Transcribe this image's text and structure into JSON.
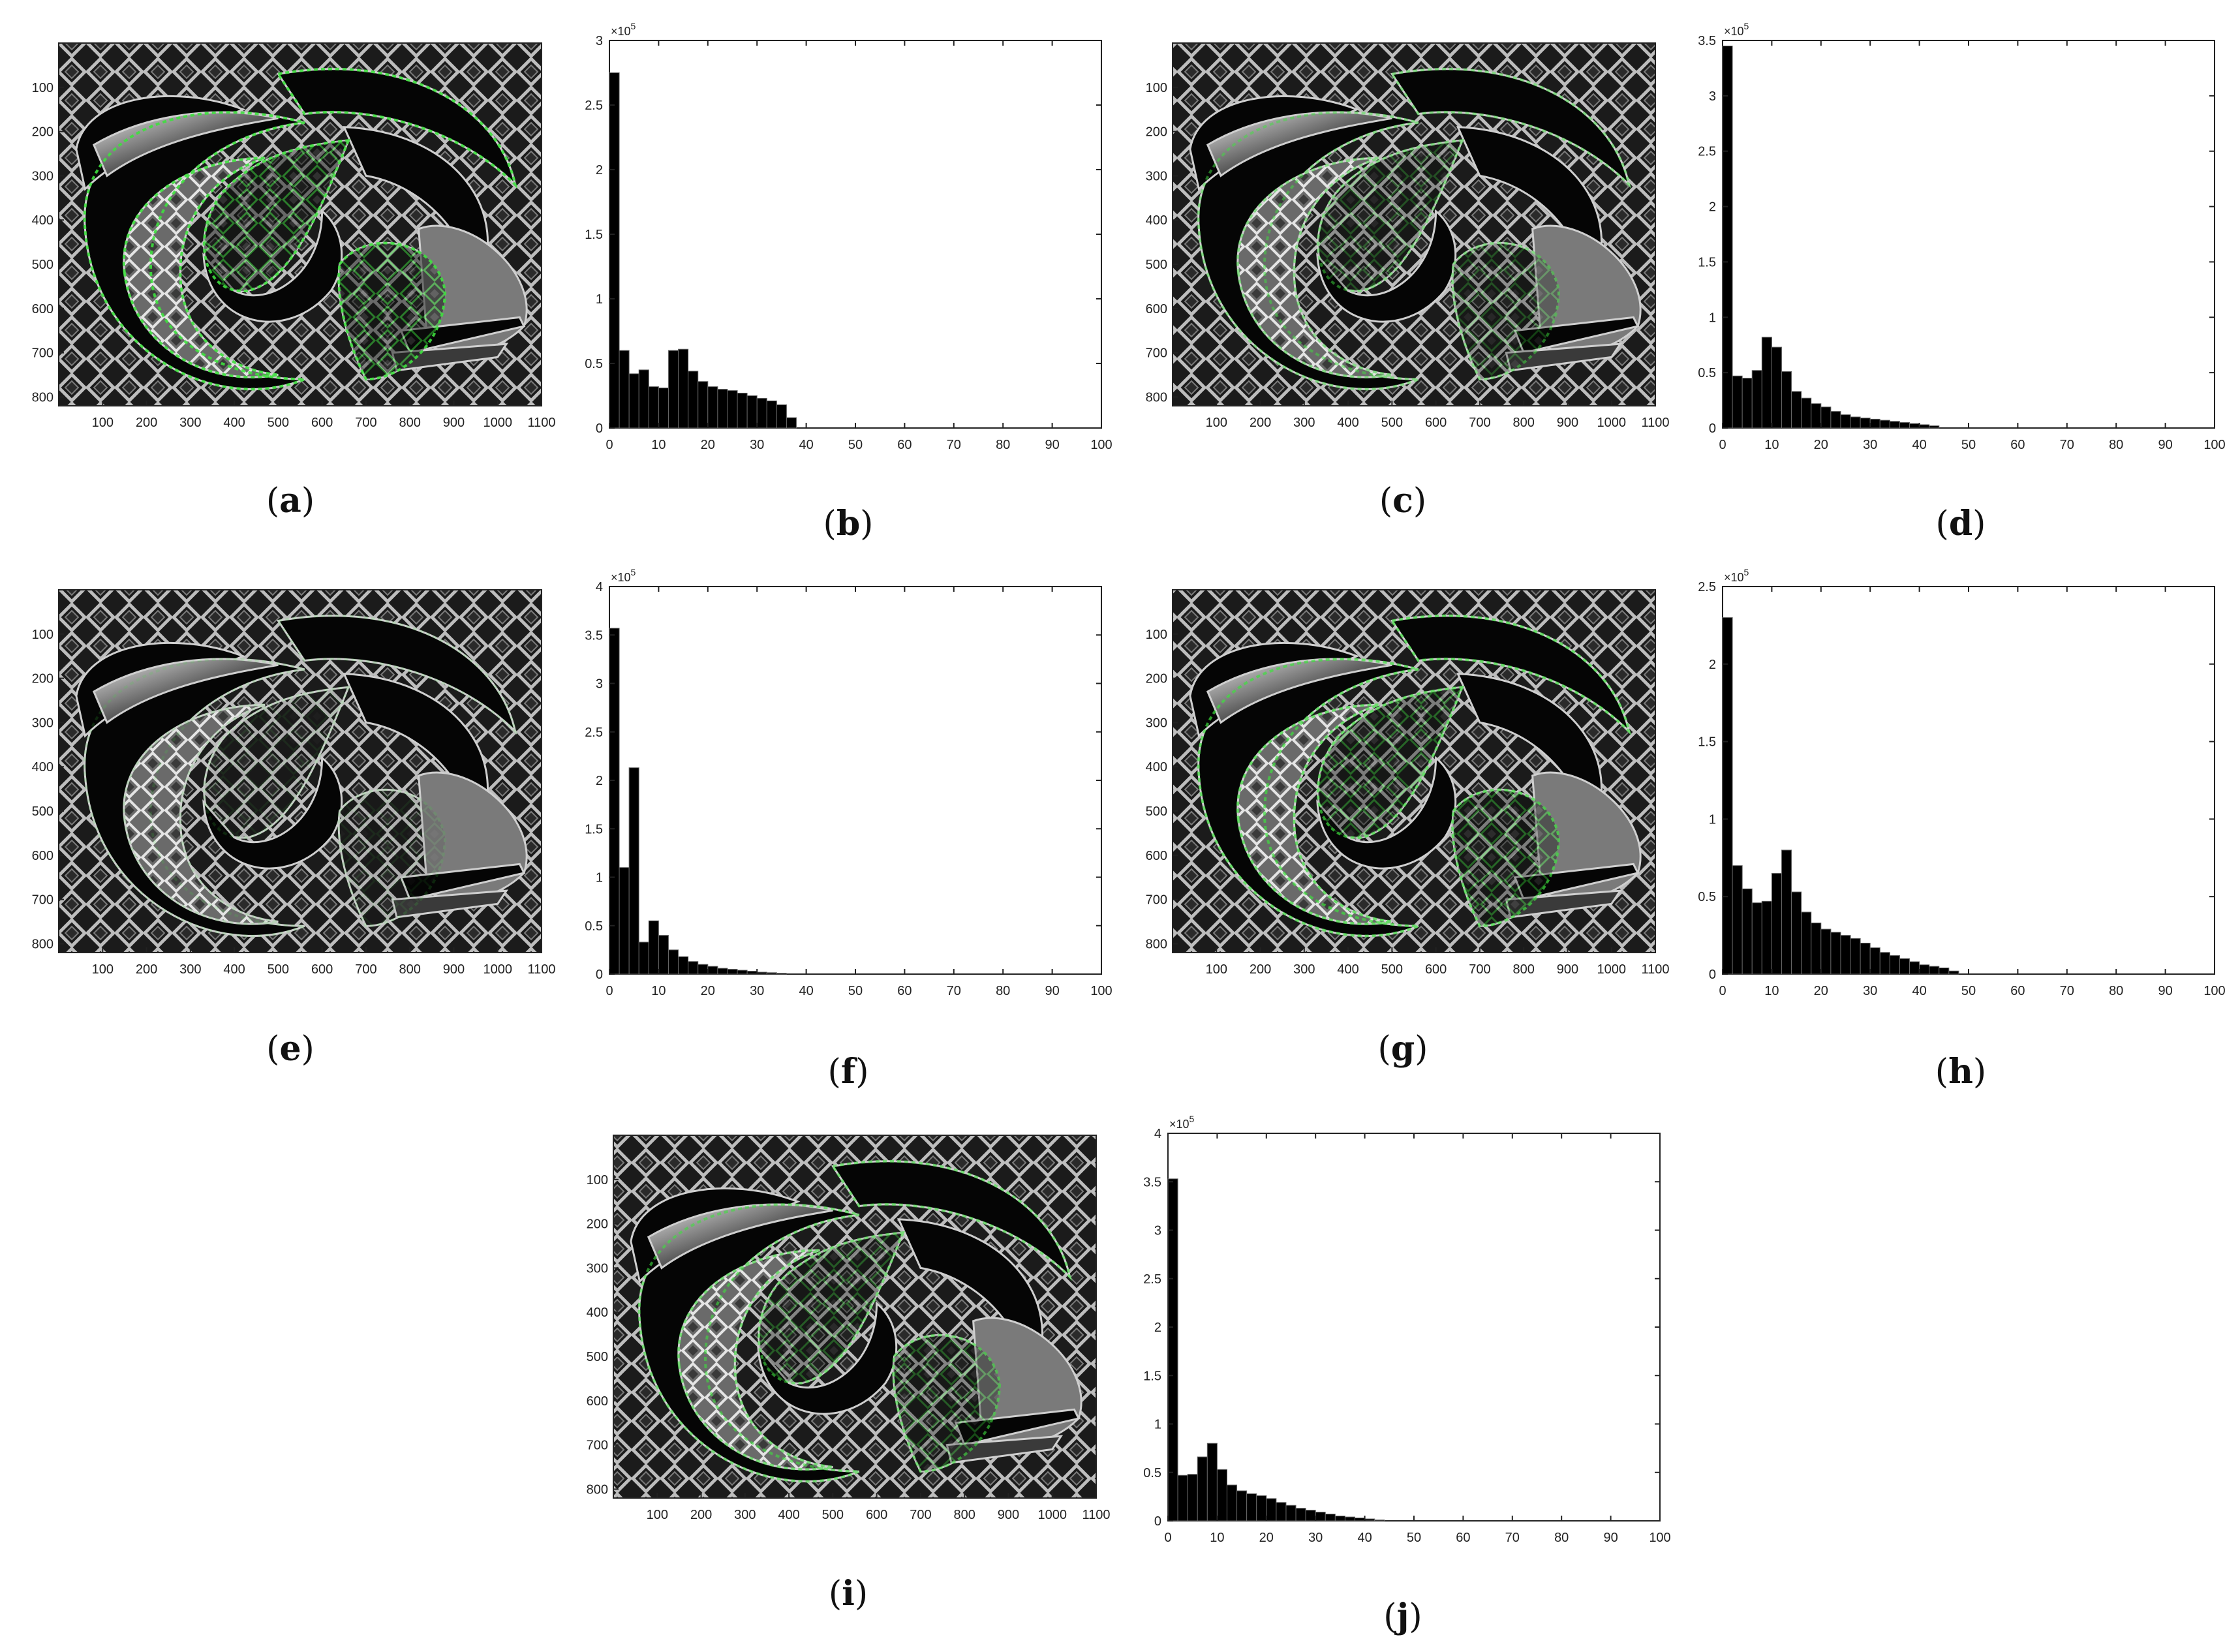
{
  "figure": {
    "panel_labels": [
      "(a)",
      "(b)",
      "(c)",
      "(d)",
      "(e)",
      "(f)",
      "(g)",
      "(h)",
      "(i)",
      "(j)"
    ]
  },
  "image_axes": {
    "x_ticks": [
      100,
      200,
      300,
      400,
      500,
      600,
      700,
      800,
      900,
      1000,
      1100
    ],
    "y_ticks": [
      100,
      200,
      300,
      400,
      500,
      600,
      700,
      800
    ],
    "x_range": [
      0,
      1100
    ],
    "y_range": [
      0,
      820
    ]
  },
  "colors": {
    "overlay_green": "#3ee03e",
    "bar_fill": "#000000",
    "background": "#ffffff"
  },
  "chart_data": [
    {
      "panel": "(b)",
      "type": "bar",
      "exponent": "5",
      "ylim": [
        0,
        3
      ],
      "yticks": [
        "0",
        "0.5",
        "1",
        "1.5",
        "2",
        "2.5",
        "3"
      ],
      "xlim": [
        0,
        100
      ],
      "xticks": [
        0,
        10,
        20,
        30,
        40,
        50,
        60,
        70,
        80,
        90,
        100
      ],
      "bin_start": 0,
      "bin_width": 2,
      "values": [
        2.75,
        0.6,
        0.42,
        0.45,
        0.32,
        0.31,
        0.6,
        0.61,
        0.44,
        0.36,
        0.32,
        0.3,
        0.29,
        0.27,
        0.25,
        0.23,
        0.21,
        0.18,
        0.08
      ]
    },
    {
      "panel": "(d)",
      "type": "bar",
      "exponent": "5",
      "ylim": [
        0,
        3.5
      ],
      "yticks": [
        "0",
        "0.5",
        "1",
        "1.5",
        "2",
        "2.5",
        "3",
        "3.5"
      ],
      "xlim": [
        0,
        100
      ],
      "xticks": [
        0,
        10,
        20,
        30,
        40,
        50,
        60,
        70,
        80,
        90,
        100
      ],
      "bin_start": 0,
      "bin_width": 2,
      "values": [
        3.45,
        0.47,
        0.45,
        0.52,
        0.82,
        0.73,
        0.51,
        0.33,
        0.27,
        0.22,
        0.19,
        0.15,
        0.12,
        0.1,
        0.09,
        0.08,
        0.07,
        0.06,
        0.05,
        0.04,
        0.03,
        0.02
      ]
    },
    {
      "panel": "(f)",
      "type": "bar",
      "exponent": "5",
      "ylim": [
        0,
        4
      ],
      "yticks": [
        "0",
        "0.5",
        "1",
        "1.5",
        "2",
        "2.5",
        "3",
        "3.5",
        "4"
      ],
      "xlim": [
        0,
        100
      ],
      "xticks": [
        0,
        10,
        20,
        30,
        40,
        50,
        60,
        70,
        80,
        90,
        100
      ],
      "bin_start": 0,
      "bin_width": 2,
      "values": [
        3.57,
        1.1,
        2.13,
        0.33,
        0.55,
        0.4,
        0.25,
        0.18,
        0.13,
        0.1,
        0.08,
        0.06,
        0.05,
        0.04,
        0.03,
        0.02,
        0.015,
        0.01
      ]
    },
    {
      "panel": "(h)",
      "type": "bar",
      "exponent": "5",
      "ylim": [
        0,
        2.5
      ],
      "yticks": [
        "0",
        "0.5",
        "1",
        "1.5",
        "2",
        "2.5"
      ],
      "xlim": [
        0,
        100
      ],
      "xticks": [
        0,
        10,
        20,
        30,
        40,
        50,
        60,
        70,
        80,
        90,
        100
      ],
      "bin_start": 0,
      "bin_width": 2,
      "values": [
        2.3,
        0.7,
        0.55,
        0.46,
        0.47,
        0.65,
        0.8,
        0.53,
        0.4,
        0.33,
        0.29,
        0.27,
        0.25,
        0.23,
        0.2,
        0.17,
        0.14,
        0.12,
        0.1,
        0.08,
        0.06,
        0.05,
        0.04,
        0.02
      ]
    },
    {
      "panel": "(j)",
      "type": "bar",
      "exponent": "5",
      "ylim": [
        0,
        4
      ],
      "yticks": [
        "0",
        "0.5",
        "1",
        "1.5",
        "2",
        "2.5",
        "3",
        "3.5",
        "4"
      ],
      "xlim": [
        0,
        100
      ],
      "xticks": [
        0,
        10,
        20,
        30,
        40,
        50,
        60,
        70,
        80,
        90,
        100
      ],
      "bin_start": 0,
      "bin_width": 2,
      "values": [
        3.53,
        0.47,
        0.48,
        0.66,
        0.8,
        0.53,
        0.37,
        0.31,
        0.28,
        0.26,
        0.23,
        0.19,
        0.16,
        0.13,
        0.11,
        0.09,
        0.07,
        0.05,
        0.04,
        0.03,
        0.02,
        0.01
      ]
    }
  ]
}
